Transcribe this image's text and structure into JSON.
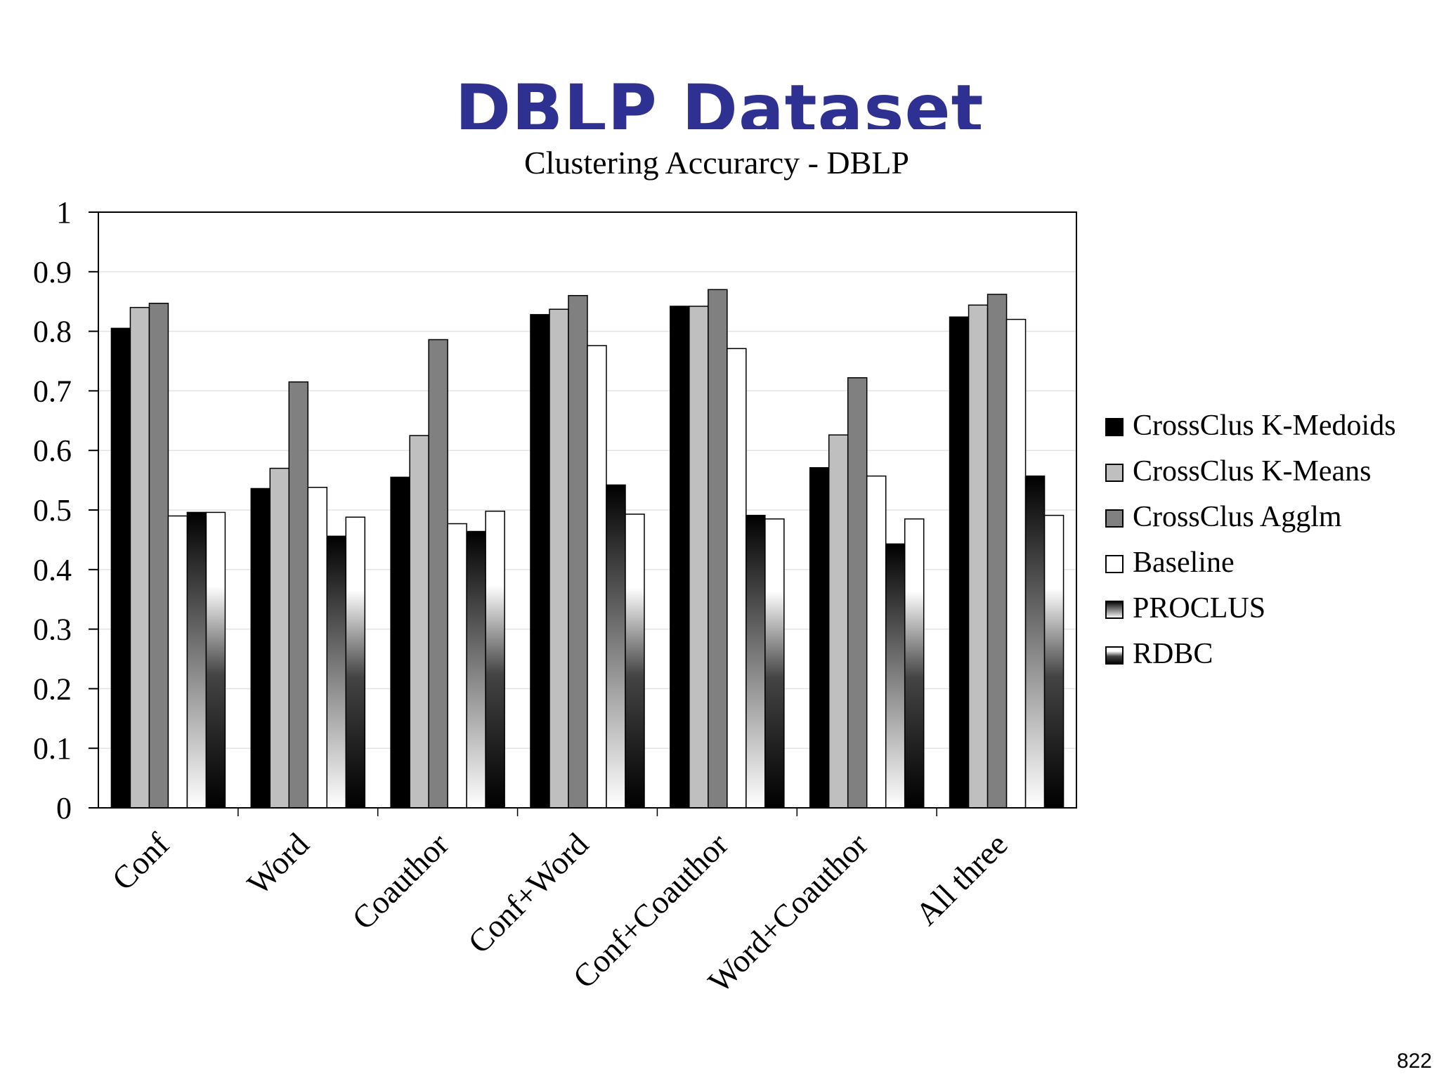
{
  "slide": {
    "title": "DBLP Dataset",
    "page_number": "822"
  },
  "chart_data": {
    "type": "bar",
    "title": "Clustering Accurarcy - DBLP",
    "xlabel": "",
    "ylabel": "",
    "ylim": [
      0,
      1
    ],
    "yticks": [
      "0",
      "0.1",
      "0.2",
      "0.3",
      "0.4",
      "0.5",
      "0.6",
      "0.7",
      "0.8",
      "0.9",
      "1"
    ],
    "grid": true,
    "legend_position": "right",
    "categories": [
      "Conf",
      "Word",
      "Coauthor",
      "Conf+Word",
      "Conf+Coauthor",
      "Word+Coauthor",
      "All three"
    ],
    "series": [
      {
        "name": "CrossClus K-Medoids",
        "fill": "solid",
        "color": "#000000",
        "values": [
          0.805,
          0.536,
          0.555,
          0.828,
          0.842,
          0.571,
          0.824
        ]
      },
      {
        "name": "CrossClus K-Means",
        "fill": "solid",
        "color": "#bfbfbf",
        "values": [
          0.84,
          0.57,
          0.625,
          0.837,
          0.842,
          0.626,
          0.844
        ]
      },
      {
        "name": "CrossClus Agglm",
        "fill": "solid",
        "color": "#808080",
        "values": [
          0.847,
          0.715,
          0.786,
          0.86,
          0.87,
          0.722,
          0.862
        ]
      },
      {
        "name": "Baseline",
        "fill": "solid",
        "color": "#ffffff",
        "values": [
          0.49,
          0.538,
          0.477,
          0.776,
          0.771,
          0.557,
          0.82
        ]
      },
      {
        "name": "PROCLUS",
        "fill": "gradient-white-bottom",
        "color": "#000000",
        "values": [
          0.496,
          0.456,
          0.464,
          0.542,
          0.491,
          0.443,
          0.557
        ]
      },
      {
        "name": "RDBC",
        "fill": "gradient-black-bottom",
        "color": "#000000",
        "values": [
          0.496,
          0.488,
          0.498,
          0.493,
          0.485,
          0.485,
          0.491
        ]
      }
    ]
  }
}
